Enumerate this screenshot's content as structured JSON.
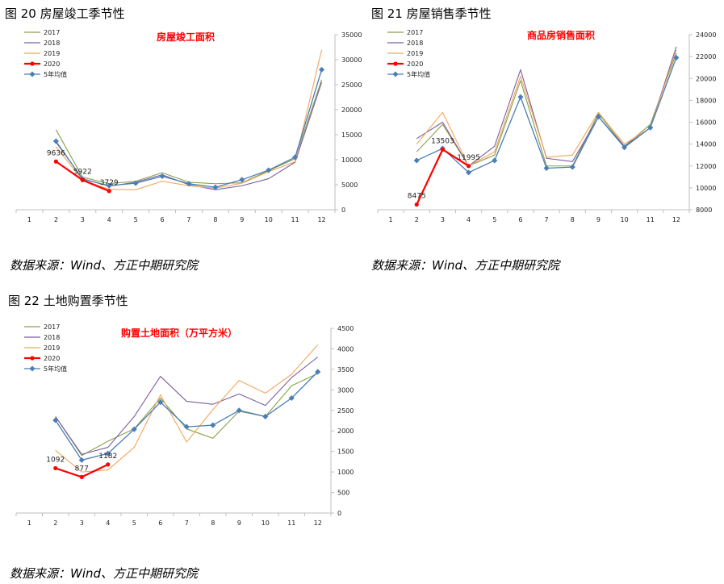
{
  "figures": [
    {
      "caption": "图 20   房屋竣工季节性",
      "source": "数据来源：Wind、方正中期研究院"
    },
    {
      "caption": "图 21   房屋销售季节性",
      "source": "数据来源：Wind、方正中期研究院"
    },
    {
      "caption": "图 22   土地购置季节性",
      "source": "数据来源：Wind、方正中期研究院"
    }
  ],
  "colors": {
    "y2017": "#8aa04a",
    "y2018": "#7b5fa0",
    "y2019": "#f5a55a",
    "y2020": "#ff0000",
    "avg5": "#4a7eb5"
  },
  "chart_data": [
    {
      "type": "line",
      "title": "房屋竣工面积",
      "categories": [
        "1",
        "2",
        "3",
        "4",
        "5",
        "6",
        "7",
        "8",
        "9",
        "10",
        "11",
        "12"
      ],
      "ylim": [
        0,
        35000
      ],
      "yticks": [
        "0",
        "5000",
        "10000",
        "15000",
        "20000",
        "25000",
        "30000",
        "35000"
      ],
      "series": [
        {
          "name": "2017",
          "key": "y2017",
          "values": [
            null,
            16000,
            6500,
            5200,
            5700,
            7400,
            5500,
            5200,
            5400,
            7800,
            10200,
            26000
          ]
        },
        {
          "name": "2018",
          "key": "y2018",
          "values": [
            null,
            13500,
            6200,
            4700,
            5500,
            7000,
            5000,
            4000,
            4800,
            6200,
            9500,
            25500
          ]
        },
        {
          "name": "2019",
          "key": "y2019",
          "values": [
            null,
            12600,
            5900,
            4100,
            4000,
            5700,
            4800,
            4300,
            5300,
            7600,
            9600,
            32000
          ]
        },
        {
          "name": "2020",
          "key": "y2020",
          "values": [
            null,
            9636,
            5922,
            3729,
            null,
            null,
            null,
            null,
            null,
            null,
            null,
            null
          ]
        },
        {
          "name": "5年均值",
          "key": "avg5",
          "values": [
            null,
            13700,
            6100,
            4800,
            5300,
            6700,
            5200,
            4500,
            6000,
            7900,
            10500,
            28000
          ]
        }
      ],
      "labels": [
        {
          "series": "2020",
          "index": 1,
          "text": "9636"
        },
        {
          "series": "2020",
          "index": 2,
          "text": "5922"
        },
        {
          "series": "2020",
          "index": 3,
          "text": "3729"
        }
      ]
    },
    {
      "type": "line",
      "title": "商品房销售面积",
      "categories": [
        "1",
        "2",
        "3",
        "4",
        "5",
        "6",
        "7",
        "8",
        "9",
        "10",
        "11",
        "12"
      ],
      "ylim": [
        8000,
        24000
      ],
      "yticks": [
        "8000",
        "10000",
        "12000",
        "14000",
        "16000",
        "18000",
        "20000",
        "22000",
        "24000"
      ],
      "series": [
        {
          "name": "2017",
          "key": "y2017",
          "values": [
            null,
            13300,
            15800,
            12000,
            13000,
            19800,
            12000,
            12000,
            16800,
            13800,
            15800,
            22300
          ]
        },
        {
          "name": "2018",
          "key": "y2018",
          "values": [
            null,
            14500,
            16000,
            12000,
            13800,
            20800,
            12700,
            12400,
            16500,
            13800,
            15500,
            22900
          ]
        },
        {
          "name": "2019",
          "key": "y2019",
          "values": [
            null,
            14000,
            16900,
            12000,
            13300,
            20200,
            12800,
            13000,
            16900,
            14000,
            15500,
            22600
          ]
        },
        {
          "name": "2020",
          "key": "y2020",
          "values": [
            null,
            8475,
            13503,
            11995,
            null,
            null,
            null,
            null,
            null,
            null,
            null,
            null
          ]
        },
        {
          "name": "5年均值",
          "key": "avg5",
          "values": [
            null,
            12500,
            13600,
            11400,
            12500,
            18300,
            11800,
            11900,
            16500,
            13700,
            15500,
            21900
          ]
        }
      ],
      "labels": [
        {
          "series": "2020",
          "index": 1,
          "text": "8475"
        },
        {
          "series": "2020",
          "index": 2,
          "text": "13503"
        },
        {
          "series": "2020",
          "index": 3,
          "text": "11995"
        }
      ]
    },
    {
      "type": "line",
      "title": "购置土地面积（万平方米）",
      "categories": [
        "1",
        "2",
        "3",
        "4",
        "5",
        "6",
        "7",
        "8",
        "9",
        "10",
        "11",
        "12"
      ],
      "ylim": [
        0,
        4500
      ],
      "yticks": [
        "0",
        "500",
        "1000",
        "1500",
        "2000",
        "2500",
        "3000",
        "3500",
        "4000",
        "4500"
      ],
      "series": [
        {
          "name": "2017",
          "key": "y2017",
          "values": [
            null,
            2350,
            1400,
            1750,
            2050,
            2800,
            2050,
            1820,
            2480,
            2350,
            3100,
            3400
          ]
        },
        {
          "name": "2018",
          "key": "y2018",
          "values": [
            null,
            2350,
            1430,
            1600,
            2350,
            3330,
            2720,
            2650,
            2900,
            2620,
            3300,
            3800
          ]
        },
        {
          "name": "2019",
          "key": "y2019",
          "values": [
            null,
            1530,
            1000,
            1050,
            1600,
            2880,
            1730,
            2520,
            3230,
            2920,
            3380,
            4100
          ]
        },
        {
          "name": "2020",
          "key": "y2020",
          "values": [
            null,
            1092,
            877,
            1182,
            null,
            null,
            null,
            null,
            null,
            null,
            null,
            null
          ]
        },
        {
          "name": "5年均值",
          "key": "avg5",
          "values": [
            null,
            2260,
            1290,
            1450,
            2040,
            2700,
            2100,
            2140,
            2500,
            2350,
            2800,
            3440
          ]
        }
      ],
      "labels": [
        {
          "series": "2020",
          "index": 1,
          "text": "1092"
        },
        {
          "series": "2020",
          "index": 2,
          "text": "877"
        },
        {
          "series": "2020",
          "index": 3,
          "text": "1182"
        }
      ]
    }
  ]
}
